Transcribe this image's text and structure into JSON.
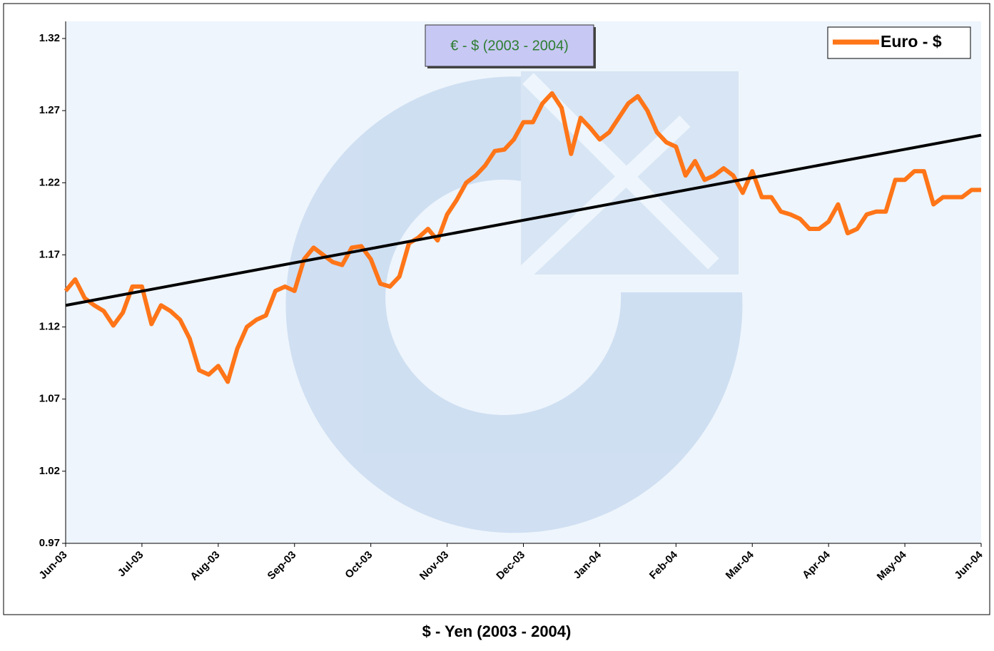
{
  "chart_data": {
    "type": "line",
    "title": "€ - $ (2003 - 2004)",
    "caption": "$ - Yen (2003 - 2004)",
    "categories": [
      "Jun-03",
      null,
      null,
      null,
      null,
      null,
      null,
      null,
      "Jul-03",
      null,
      null,
      null,
      null,
      null,
      null,
      null,
      "Aug-03",
      null,
      null,
      null,
      null,
      null,
      null,
      null,
      "Sep-03",
      null,
      null,
      null,
      null,
      null,
      null,
      null,
      "Oct-03",
      null,
      null,
      null,
      null,
      null,
      null,
      null,
      "Nov-03",
      null,
      null,
      null,
      null,
      null,
      null,
      null,
      "Dec-03",
      null,
      null,
      null,
      null,
      null,
      null,
      null,
      "Jan-04",
      null,
      null,
      null,
      null,
      null,
      null,
      null,
      "Feb-04",
      null,
      null,
      null,
      null,
      null,
      null,
      null,
      "Mar-04",
      null,
      null,
      null,
      null,
      null,
      null,
      null,
      "Apr-04",
      null,
      null,
      null,
      null,
      null,
      null,
      null,
      "May-04",
      null,
      null,
      null,
      null,
      null,
      null,
      null,
      "Jun-04"
    ],
    "series": [
      {
        "name": "Euro - $",
        "color": "#ff7518",
        "values": [
          1.145,
          1.153,
          1.14,
          1.135,
          1.131,
          1.121,
          1.13,
          1.148,
          1.148,
          1.122,
          1.135,
          1.131,
          1.125,
          1.112,
          1.09,
          1.087,
          1.093,
          1.082,
          1.105,
          1.12,
          1.125,
          1.128,
          1.145,
          1.148,
          1.145,
          1.167,
          1.175,
          1.17,
          1.165,
          1.163,
          1.175,
          1.176,
          1.167,
          1.15,
          1.148,
          1.155,
          1.178,
          1.182,
          1.188,
          1.18,
          1.198,
          1.208,
          1.22,
          1.225,
          1.232,
          1.242,
          1.243,
          1.25,
          1.262,
          1.262,
          1.275,
          1.282,
          1.272,
          1.24,
          1.265,
          1.258,
          1.25,
          1.255,
          1.265,
          1.275,
          1.28,
          1.27,
          1.255,
          1.248,
          1.245,
          1.225,
          1.235,
          1.222,
          1.225,
          1.23,
          1.225,
          1.213,
          1.228,
          1.21,
          1.21,
          1.2,
          1.198,
          1.195,
          1.188,
          1.188,
          1.193,
          1.205,
          1.185,
          1.188,
          1.198,
          1.2,
          1.2,
          1.222,
          1.222,
          1.228,
          1.228,
          1.205,
          1.21,
          1.21,
          1.21,
          1.215,
          1.215
        ]
      }
    ],
    "trendline": {
      "color": "#000000",
      "values": [
        1.135,
        1.253
      ]
    },
    "ylim": [
      0.97,
      1.32
    ],
    "yticks": [
      0.97,
      1.02,
      1.07,
      1.12,
      1.17,
      1.22,
      1.27,
      1.32
    ],
    "legend": "top-right"
  }
}
